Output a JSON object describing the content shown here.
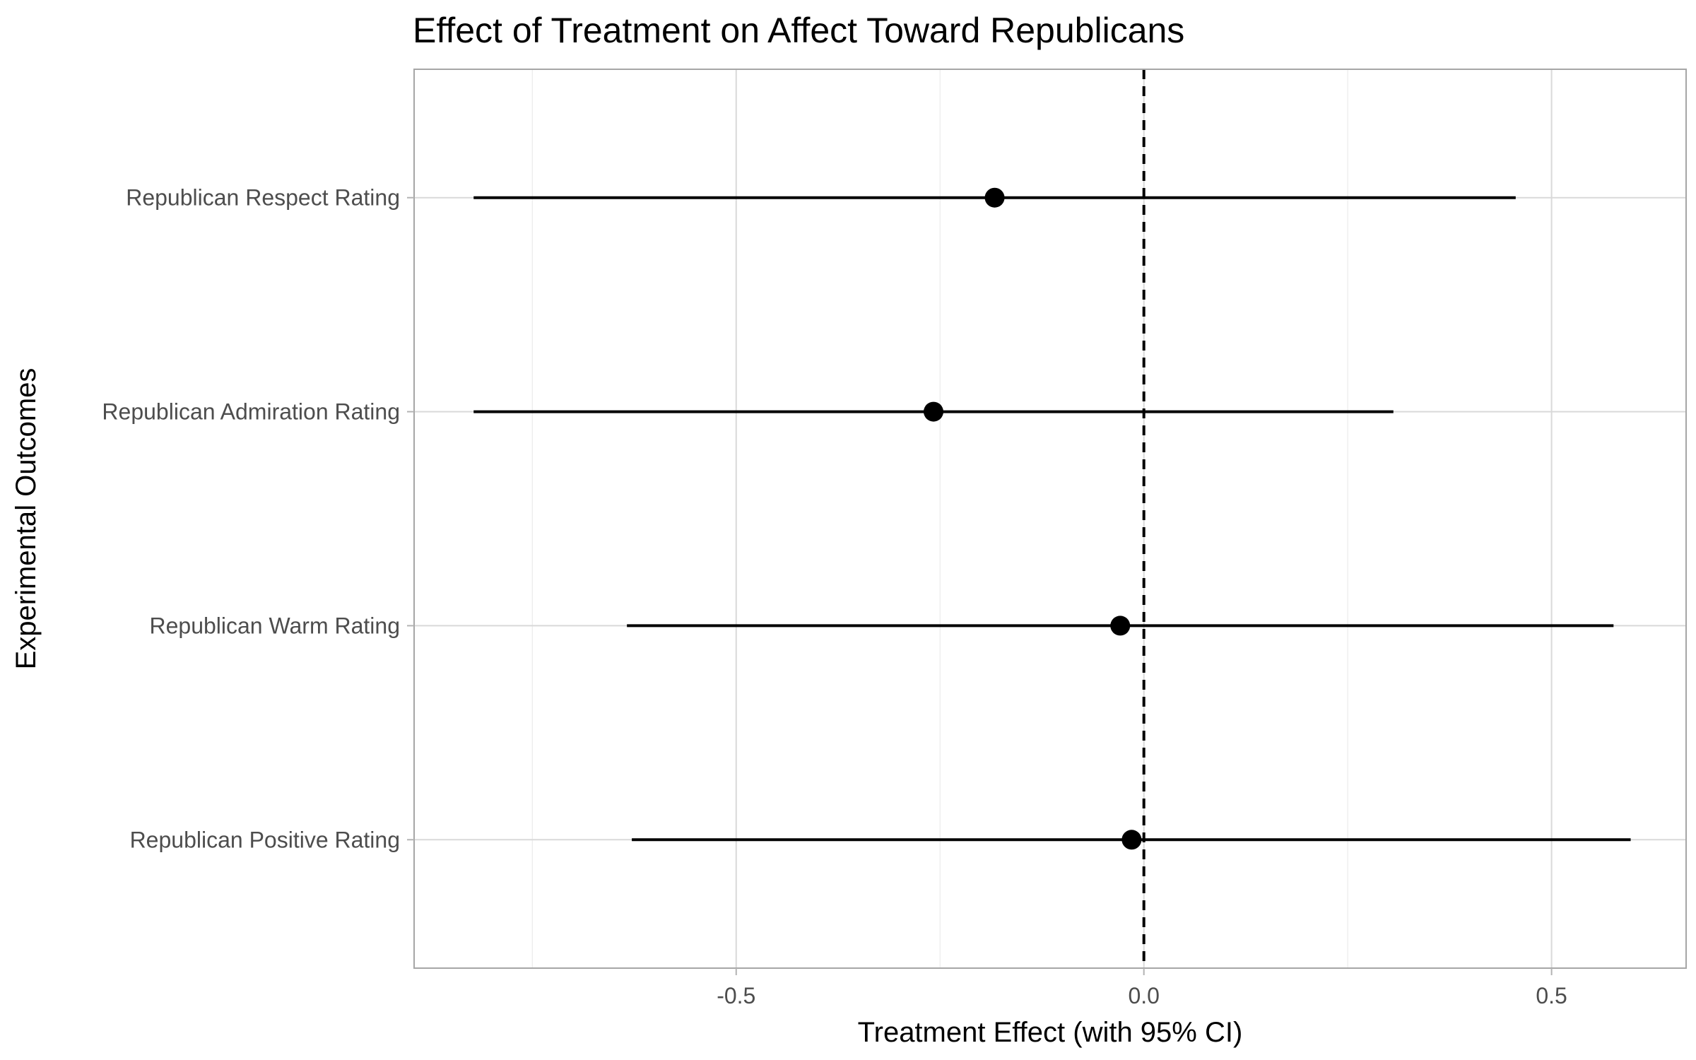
{
  "chart_data": {
    "type": "scatter",
    "subtype": "coefficient-plot-with-error-bars",
    "title": "Effect of Treatment on Affect Toward Republicans",
    "xlabel": "Treatment Effect (with 95% CI)",
    "ylabel": "Experimental Outcomes",
    "xlim": [
      -0.895,
      0.665
    ],
    "x_ticks": [
      -0.5,
      0.0,
      0.5
    ],
    "x_tick_labels": [
      "-0.5",
      "0.0",
      "0.5"
    ],
    "categories": [
      "Republican Respect Rating",
      "Republican Admiration Rating",
      "Republican Warm Rating",
      "Republican Positive Rating"
    ],
    "estimates": [
      -0.183,
      -0.258,
      -0.029,
      -0.015
    ],
    "ci_lower": [
      -0.822,
      -0.822,
      -0.634,
      -0.628
    ],
    "ci_upper": [
      0.456,
      0.306,
      0.576,
      0.597
    ],
    "reference_line": {
      "x": 0,
      "style": "dashed"
    },
    "grid": true,
    "legend": "none"
  }
}
